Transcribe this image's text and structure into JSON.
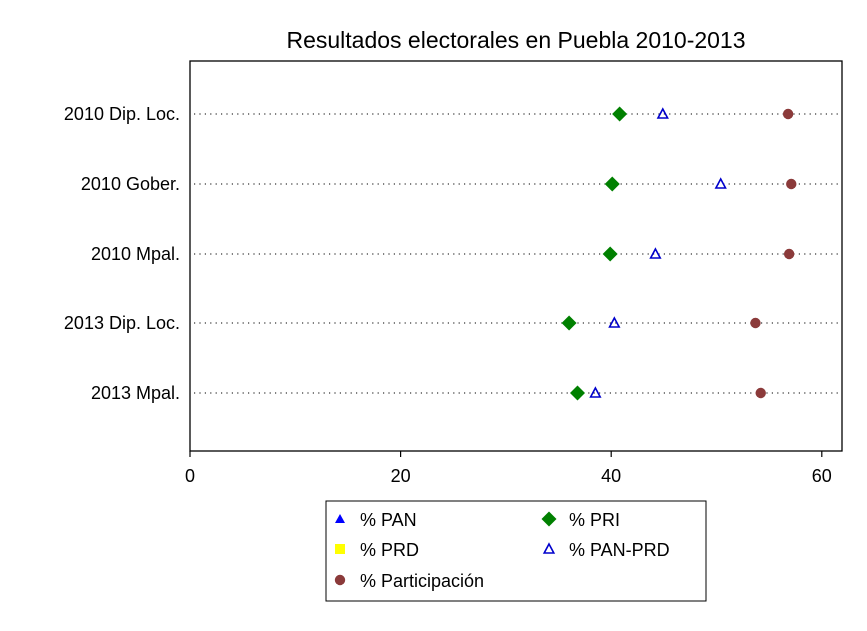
{
  "chart_data": {
    "type": "scatter",
    "orientation": "horizontal-dot",
    "title": "Resultados electorales en Puebla 2010-2013",
    "xlabel": "",
    "ylabel": "",
    "xlim": [
      0,
      62
    ],
    "xticks": [
      0,
      20,
      40,
      60
    ],
    "grid": "dotted horizontal guides",
    "legend_placement": "bottom",
    "categories": [
      "2010 Dip. Loc.",
      "2010 Gober.",
      "2010 Mpal.",
      "2013 Dip. Loc.",
      "2013 Mpal."
    ],
    "series": [
      {
        "name": "% PAN",
        "marker": "triangle-filled",
        "color": "#0000ff",
        "values": [
          null,
          null,
          null,
          null,
          null
        ]
      },
      {
        "name": "% PRI",
        "marker": "diamond-filled",
        "color": "#008000",
        "values": [
          40.8,
          40.1,
          39.9,
          36.0,
          36.8
        ]
      },
      {
        "name": "% PRD",
        "marker": "square-filled",
        "color": "#ffff00",
        "values": [
          null,
          null,
          null,
          null,
          null
        ]
      },
      {
        "name": "% PAN-PRD",
        "marker": "triangle-open",
        "color": "#0000cc",
        "values": [
          44.9,
          50.4,
          44.2,
          40.3,
          38.5
        ]
      },
      {
        "name": "% Participación",
        "marker": "circle-filled",
        "color": "#8b3a3a",
        "values": [
          56.8,
          57.1,
          56.9,
          53.7,
          54.2
        ]
      }
    ]
  }
}
